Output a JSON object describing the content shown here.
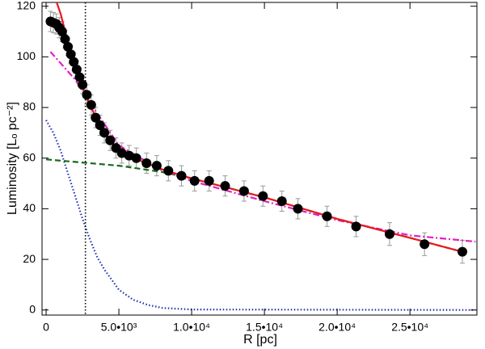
{
  "chart_data": {
    "type": "scatter",
    "xlabel": "R [pc]",
    "ylabel": "Luminosity [Lₒ pc⁻²]",
    "xlim": [
      -280,
      29600
    ],
    "ylim": [
      -2,
      121.5
    ],
    "xticks": [
      0,
      {
        "value": 5000,
        "label": "5.0•10³"
      },
      {
        "value": 10000,
        "label": "1.0•10⁴"
      },
      {
        "value": 15000,
        "label": "1.5•10⁴"
      },
      {
        "value": 20000,
        "label": "2.0•10⁴"
      },
      {
        "value": 25000,
        "label": "2.5•10⁴"
      }
    ],
    "yticks": [
      0,
      20,
      40,
      60,
      80,
      100,
      120
    ],
    "vline_x": 2700,
    "vline_color": "#000000",
    "series": [
      {
        "style": "dotted",
        "color": "#1f2fb0",
        "x": [
          0,
          500,
          1000,
          1500,
          2000,
          2500,
          3000,
          3500,
          4000,
          5000,
          6000,
          7000,
          8000,
          10000,
          29500
        ],
        "values": [
          75,
          70,
          63,
          54,
          45,
          36,
          28,
          21,
          16,
          8,
          4,
          2,
          0.8,
          0.2,
          0
        ]
      },
      {
        "style": "dashed",
        "color": "#1a6b1a",
        "x": [
          0,
          5000,
          8000,
          10000,
          15000,
          20000,
          25000,
          28600
        ],
        "values": [
          59.5,
          57,
          54.5,
          52,
          44.5,
          36,
          28.5,
          23
        ]
      },
      {
        "style": "dashdot",
        "color": "#e020c0",
        "x": [
          300,
          2000,
          3000,
          5000,
          8000,
          10000,
          15000,
          20000,
          25000,
          29500
        ],
        "values": [
          102,
          91,
          82,
          65,
          55,
          51,
          43,
          35.5,
          29.5,
          27
        ]
      },
      {
        "style": "solid",
        "color": "#e8191e",
        "x": [
          700,
          1000,
          1500,
          2000,
          2700,
          3500,
          4500,
          6000,
          8000,
          10000,
          15000,
          20000,
          25000,
          28600
        ],
        "values": [
          122,
          117,
          106,
          96,
          85,
          75,
          66,
          60,
          55.5,
          52,
          44.5,
          36,
          28.5,
          23
        ]
      },
      {
        "style": "points",
        "color": "#000000",
        "error_color": "#999999",
        "x": [
          300,
          500,
          700,
          900,
          1100,
          1300,
          1500,
          1700,
          1900,
          2100,
          2300,
          2500,
          2800,
          3100,
          3400,
          3700,
          4000,
          4400,
          4800,
          5200,
          5700,
          6200,
          6900,
          7600,
          8400,
          9300,
          10200,
          11200,
          12300,
          13600,
          14900,
          16200,
          17300,
          19300,
          21300,
          23600,
          26000,
          28600
        ],
        "values": [
          114,
          113.5,
          113,
          111.5,
          110,
          107,
          104,
          101,
          98,
          95,
          92,
          89,
          85,
          81,
          76,
          73,
          70,
          67,
          64,
          62,
          61,
          60,
          58,
          57,
          55,
          53,
          51,
          51,
          49,
          47,
          45,
          43,
          40,
          37,
          33,
          30,
          26,
          23
        ],
        "errors": [
          4,
          4,
          4,
          4,
          4,
          3.5,
          3.5,
          3.5,
          3.5,
          3.5,
          3.5,
          3.5,
          4,
          4,
          4,
          4,
          4,
          4,
          4,
          4,
          4,
          4,
          4,
          4,
          4,
          4,
          4,
          4,
          4,
          4,
          4,
          4,
          4,
          4,
          4,
          4.5,
          4.5,
          4.5
        ]
      }
    ]
  }
}
